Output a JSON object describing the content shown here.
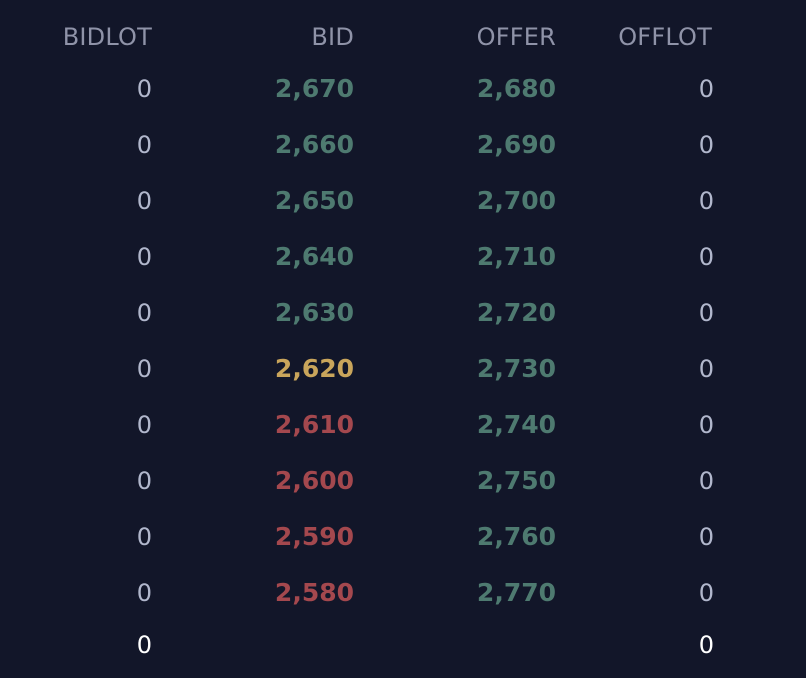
{
  "headers": {
    "bidlot": "BIDLOT",
    "bid": "BID",
    "offer": "OFFER",
    "offlot": "OFFLOT"
  },
  "rows": [
    {
      "bidlot": "0",
      "bid": "2,670",
      "bid_color": "green",
      "offer": "2,680",
      "offlot": "0"
    },
    {
      "bidlot": "0",
      "bid": "2,660",
      "bid_color": "green",
      "offer": "2,690",
      "offlot": "0"
    },
    {
      "bidlot": "0",
      "bid": "2,650",
      "bid_color": "green",
      "offer": "2,700",
      "offlot": "0"
    },
    {
      "bidlot": "0",
      "bid": "2,640",
      "bid_color": "green",
      "offer": "2,710",
      "offlot": "0"
    },
    {
      "bidlot": "0",
      "bid": "2,630",
      "bid_color": "green",
      "offer": "2,720",
      "offlot": "0"
    },
    {
      "bidlot": "0",
      "bid": "2,620",
      "bid_color": "yellow",
      "offer": "2,730",
      "offlot": "0"
    },
    {
      "bidlot": "0",
      "bid": "2,610",
      "bid_color": "red",
      "offer": "2,740",
      "offlot": "0"
    },
    {
      "bidlot": "0",
      "bid": "2,600",
      "bid_color": "red",
      "offer": "2,750",
      "offlot": "0"
    },
    {
      "bidlot": "0",
      "bid": "2,590",
      "bid_color": "red",
      "offer": "2,760",
      "offlot": "0"
    },
    {
      "bidlot": "0",
      "bid": "2,580",
      "bid_color": "red",
      "offer": "2,770",
      "offlot": "0"
    }
  ],
  "totals": {
    "bidlot": "0",
    "offlot": "0"
  },
  "colors": {
    "background": "#121629",
    "header": "#8f93a8",
    "lot": "#b1b7cc",
    "price_up": "#4e7a70",
    "price_unchanged": "#c9a55b",
    "price_down": "#a4484e",
    "total": "#ffffff"
  }
}
